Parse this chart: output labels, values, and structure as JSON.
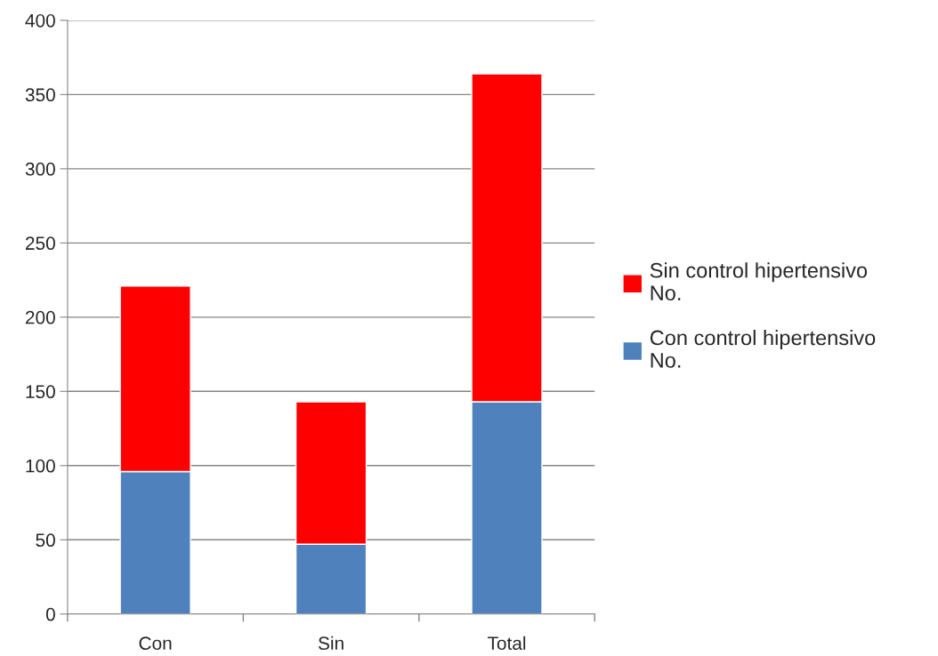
{
  "chart_data": {
    "type": "bar",
    "stacked": true,
    "categories": [
      "Con",
      "Sin",
      "Total"
    ],
    "series": [
      {
        "name": "Con control hipertensivo\nNo.",
        "color": "#4f81bd",
        "values": [
          96,
          47,
          143
        ]
      },
      {
        "name": "Sin control hipertensivo\nNo.",
        "color": "#ff0000",
        "values": [
          125,
          96,
          221
        ]
      }
    ],
    "ylim": [
      0,
      400
    ],
    "yticks": [
      0,
      50,
      100,
      150,
      200,
      250,
      300,
      350,
      400
    ],
    "grid": "y",
    "legend": "right"
  }
}
